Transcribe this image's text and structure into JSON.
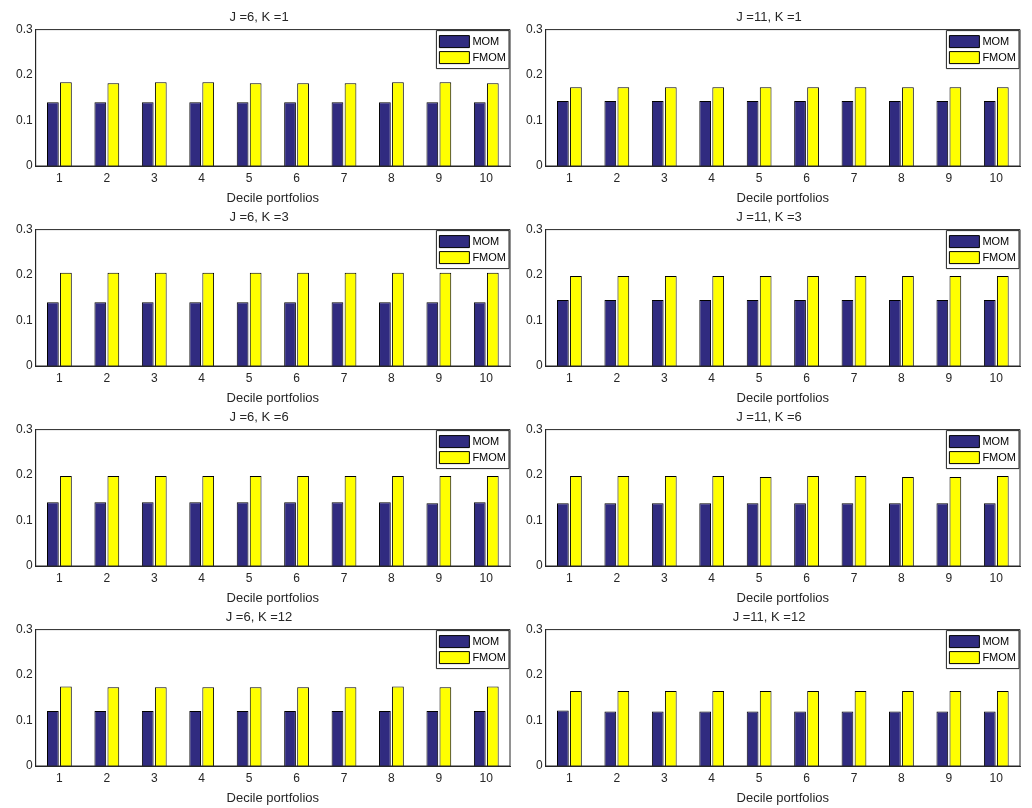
{
  "chart_data": [
    {
      "type": "bar",
      "title": "J =6, K =1",
      "xlabel": "Decile portfolios",
      "categories": [
        "1",
        "2",
        "3",
        "4",
        "5",
        "6",
        "7",
        "8",
        "9",
        "10"
      ],
      "ylim": [
        0,
        0.3
      ],
      "yticks": [
        0,
        0.1,
        0.2,
        0.3
      ],
      "grid": false,
      "legend": "top right",
      "series": [
        {
          "name": "MOM",
          "color": "#302b80",
          "values": [
            0.14,
            0.14,
            0.14,
            0.14,
            0.14,
            0.14,
            0.14,
            0.14,
            0.14,
            0.14
          ]
        },
        {
          "name": "FMOM",
          "color": "#ffff00",
          "values": [
            0.184,
            0.182,
            0.184,
            0.184,
            0.182,
            0.182,
            0.182,
            0.184,
            0.184,
            0.182
          ]
        }
      ]
    },
    {
      "type": "bar",
      "title": "J =11, K =1",
      "xlabel": "Decile portfolios",
      "categories": [
        "1",
        "2",
        "3",
        "4",
        "5",
        "6",
        "7",
        "8",
        "9",
        "10"
      ],
      "ylim": [
        0,
        0.3
      ],
      "yticks": [
        0,
        0.1,
        0.2,
        0.3
      ],
      "grid": false,
      "legend": "top right",
      "series": [
        {
          "name": "MOM",
          "color": "#302b80",
          "values": [
            0.143,
            0.143,
            0.143,
            0.143,
            0.143,
            0.143,
            0.143,
            0.143,
            0.143,
            0.143
          ]
        },
        {
          "name": "FMOM",
          "color": "#ffff00",
          "values": [
            0.173,
            0.173,
            0.173,
            0.173,
            0.173,
            0.173,
            0.173,
            0.173,
            0.173,
            0.173
          ]
        }
      ]
    },
    {
      "type": "bar",
      "title": "J =6, K =3",
      "xlabel": "Decile portfolios",
      "categories": [
        "1",
        "2",
        "3",
        "4",
        "5",
        "6",
        "7",
        "8",
        "9",
        "10"
      ],
      "ylim": [
        0,
        0.3
      ],
      "yticks": [
        0,
        0.1,
        0.2,
        0.3
      ],
      "grid": false,
      "legend": "top right",
      "series": [
        {
          "name": "MOM",
          "color": "#302b80",
          "values": [
            0.14,
            0.14,
            0.14,
            0.14,
            0.14,
            0.14,
            0.14,
            0.14,
            0.14,
            0.14
          ]
        },
        {
          "name": "FMOM",
          "color": "#ffff00",
          "values": [
            0.205,
            0.205,
            0.205,
            0.205,
            0.205,
            0.205,
            0.205,
            0.205,
            0.205,
            0.205
          ]
        }
      ]
    },
    {
      "type": "bar",
      "title": "J =11, K =3",
      "xlabel": "Decile portfolios",
      "categories": [
        "1",
        "2",
        "3",
        "4",
        "5",
        "6",
        "7",
        "8",
        "9",
        "10"
      ],
      "ylim": [
        0,
        0.3
      ],
      "yticks": [
        0,
        0.1,
        0.2,
        0.3
      ],
      "grid": false,
      "legend": "top right",
      "series": [
        {
          "name": "MOM",
          "color": "#302b80",
          "values": [
            0.145,
            0.145,
            0.145,
            0.145,
            0.145,
            0.145,
            0.145,
            0.145,
            0.145,
            0.145
          ]
        },
        {
          "name": "FMOM",
          "color": "#ffff00",
          "values": [
            0.198,
            0.198,
            0.198,
            0.198,
            0.198,
            0.198,
            0.198,
            0.198,
            0.198,
            0.198
          ]
        }
      ]
    },
    {
      "type": "bar",
      "title": "J =6, K =6",
      "xlabel": "Decile portfolios",
      "categories": [
        "1",
        "2",
        "3",
        "4",
        "5",
        "6",
        "7",
        "8",
        "9",
        "10"
      ],
      "ylim": [
        0,
        0.3
      ],
      "yticks": [
        0,
        0.1,
        0.2,
        0.3
      ],
      "grid": false,
      "legend": "top right",
      "series": [
        {
          "name": "MOM",
          "color": "#302b80",
          "values": [
            0.14,
            0.14,
            0.14,
            0.14,
            0.14,
            0.14,
            0.14,
            0.14,
            0.138,
            0.14
          ]
        },
        {
          "name": "FMOM",
          "color": "#ffff00",
          "values": [
            0.198,
            0.198,
            0.198,
            0.198,
            0.198,
            0.198,
            0.198,
            0.198,
            0.198,
            0.198
          ]
        }
      ]
    },
    {
      "type": "bar",
      "title": "J =11, K =6",
      "xlabel": "Decile portfolios",
      "categories": [
        "1",
        "2",
        "3",
        "4",
        "5",
        "6",
        "7",
        "8",
        "9",
        "10"
      ],
      "ylim": [
        0,
        0.3
      ],
      "yticks": [
        0,
        0.1,
        0.2,
        0.3
      ],
      "grid": false,
      "legend": "top right",
      "series": [
        {
          "name": "MOM",
          "color": "#302b80",
          "values": [
            0.138,
            0.138,
            0.138,
            0.138,
            0.138,
            0.138,
            0.138,
            0.138,
            0.138,
            0.138
          ]
        },
        {
          "name": "FMOM",
          "color": "#ffff00",
          "values": [
            0.198,
            0.198,
            0.198,
            0.198,
            0.196,
            0.198,
            0.198,
            0.196,
            0.196,
            0.198
          ]
        }
      ]
    },
    {
      "type": "bar",
      "title": "J =6, K =12",
      "xlabel": "Decile portfolios",
      "categories": [
        "1",
        "2",
        "3",
        "4",
        "5",
        "6",
        "7",
        "8",
        "9",
        "10"
      ],
      "ylim": [
        0,
        0.3
      ],
      "yticks": [
        0,
        0.1,
        0.2,
        0.3
      ],
      "grid": false,
      "legend": "top right",
      "series": [
        {
          "name": "MOM",
          "color": "#302b80",
          "values": [
            0.121,
            0.121,
            0.121,
            0.121,
            0.121,
            0.121,
            0.121,
            0.121,
            0.121,
            0.121
          ]
        },
        {
          "name": "FMOM",
          "color": "#ffff00",
          "values": [
            0.175,
            0.173,
            0.173,
            0.173,
            0.173,
            0.173,
            0.173,
            0.175,
            0.173,
            0.175
          ]
        }
      ]
    },
    {
      "type": "bar",
      "title": "J =11, K =12",
      "xlabel": "Decile portfolios",
      "categories": [
        "1",
        "2",
        "3",
        "4",
        "5",
        "6",
        "7",
        "8",
        "9",
        "10"
      ],
      "ylim": [
        0,
        0.3
      ],
      "yticks": [
        0,
        0.1,
        0.2,
        0.3
      ],
      "grid": false,
      "legend": "top right",
      "series": [
        {
          "name": "MOM",
          "color": "#302b80",
          "values": [
            0.122,
            0.12,
            0.12,
            0.12,
            0.12,
            0.12,
            0.12,
            0.12,
            0.12,
            0.12
          ]
        },
        {
          "name": "FMOM",
          "color": "#ffff00",
          "values": [
            0.165,
            0.165,
            0.165,
            0.165,
            0.165,
            0.165,
            0.165,
            0.165,
            0.165,
            0.165
          ]
        }
      ]
    }
  ]
}
